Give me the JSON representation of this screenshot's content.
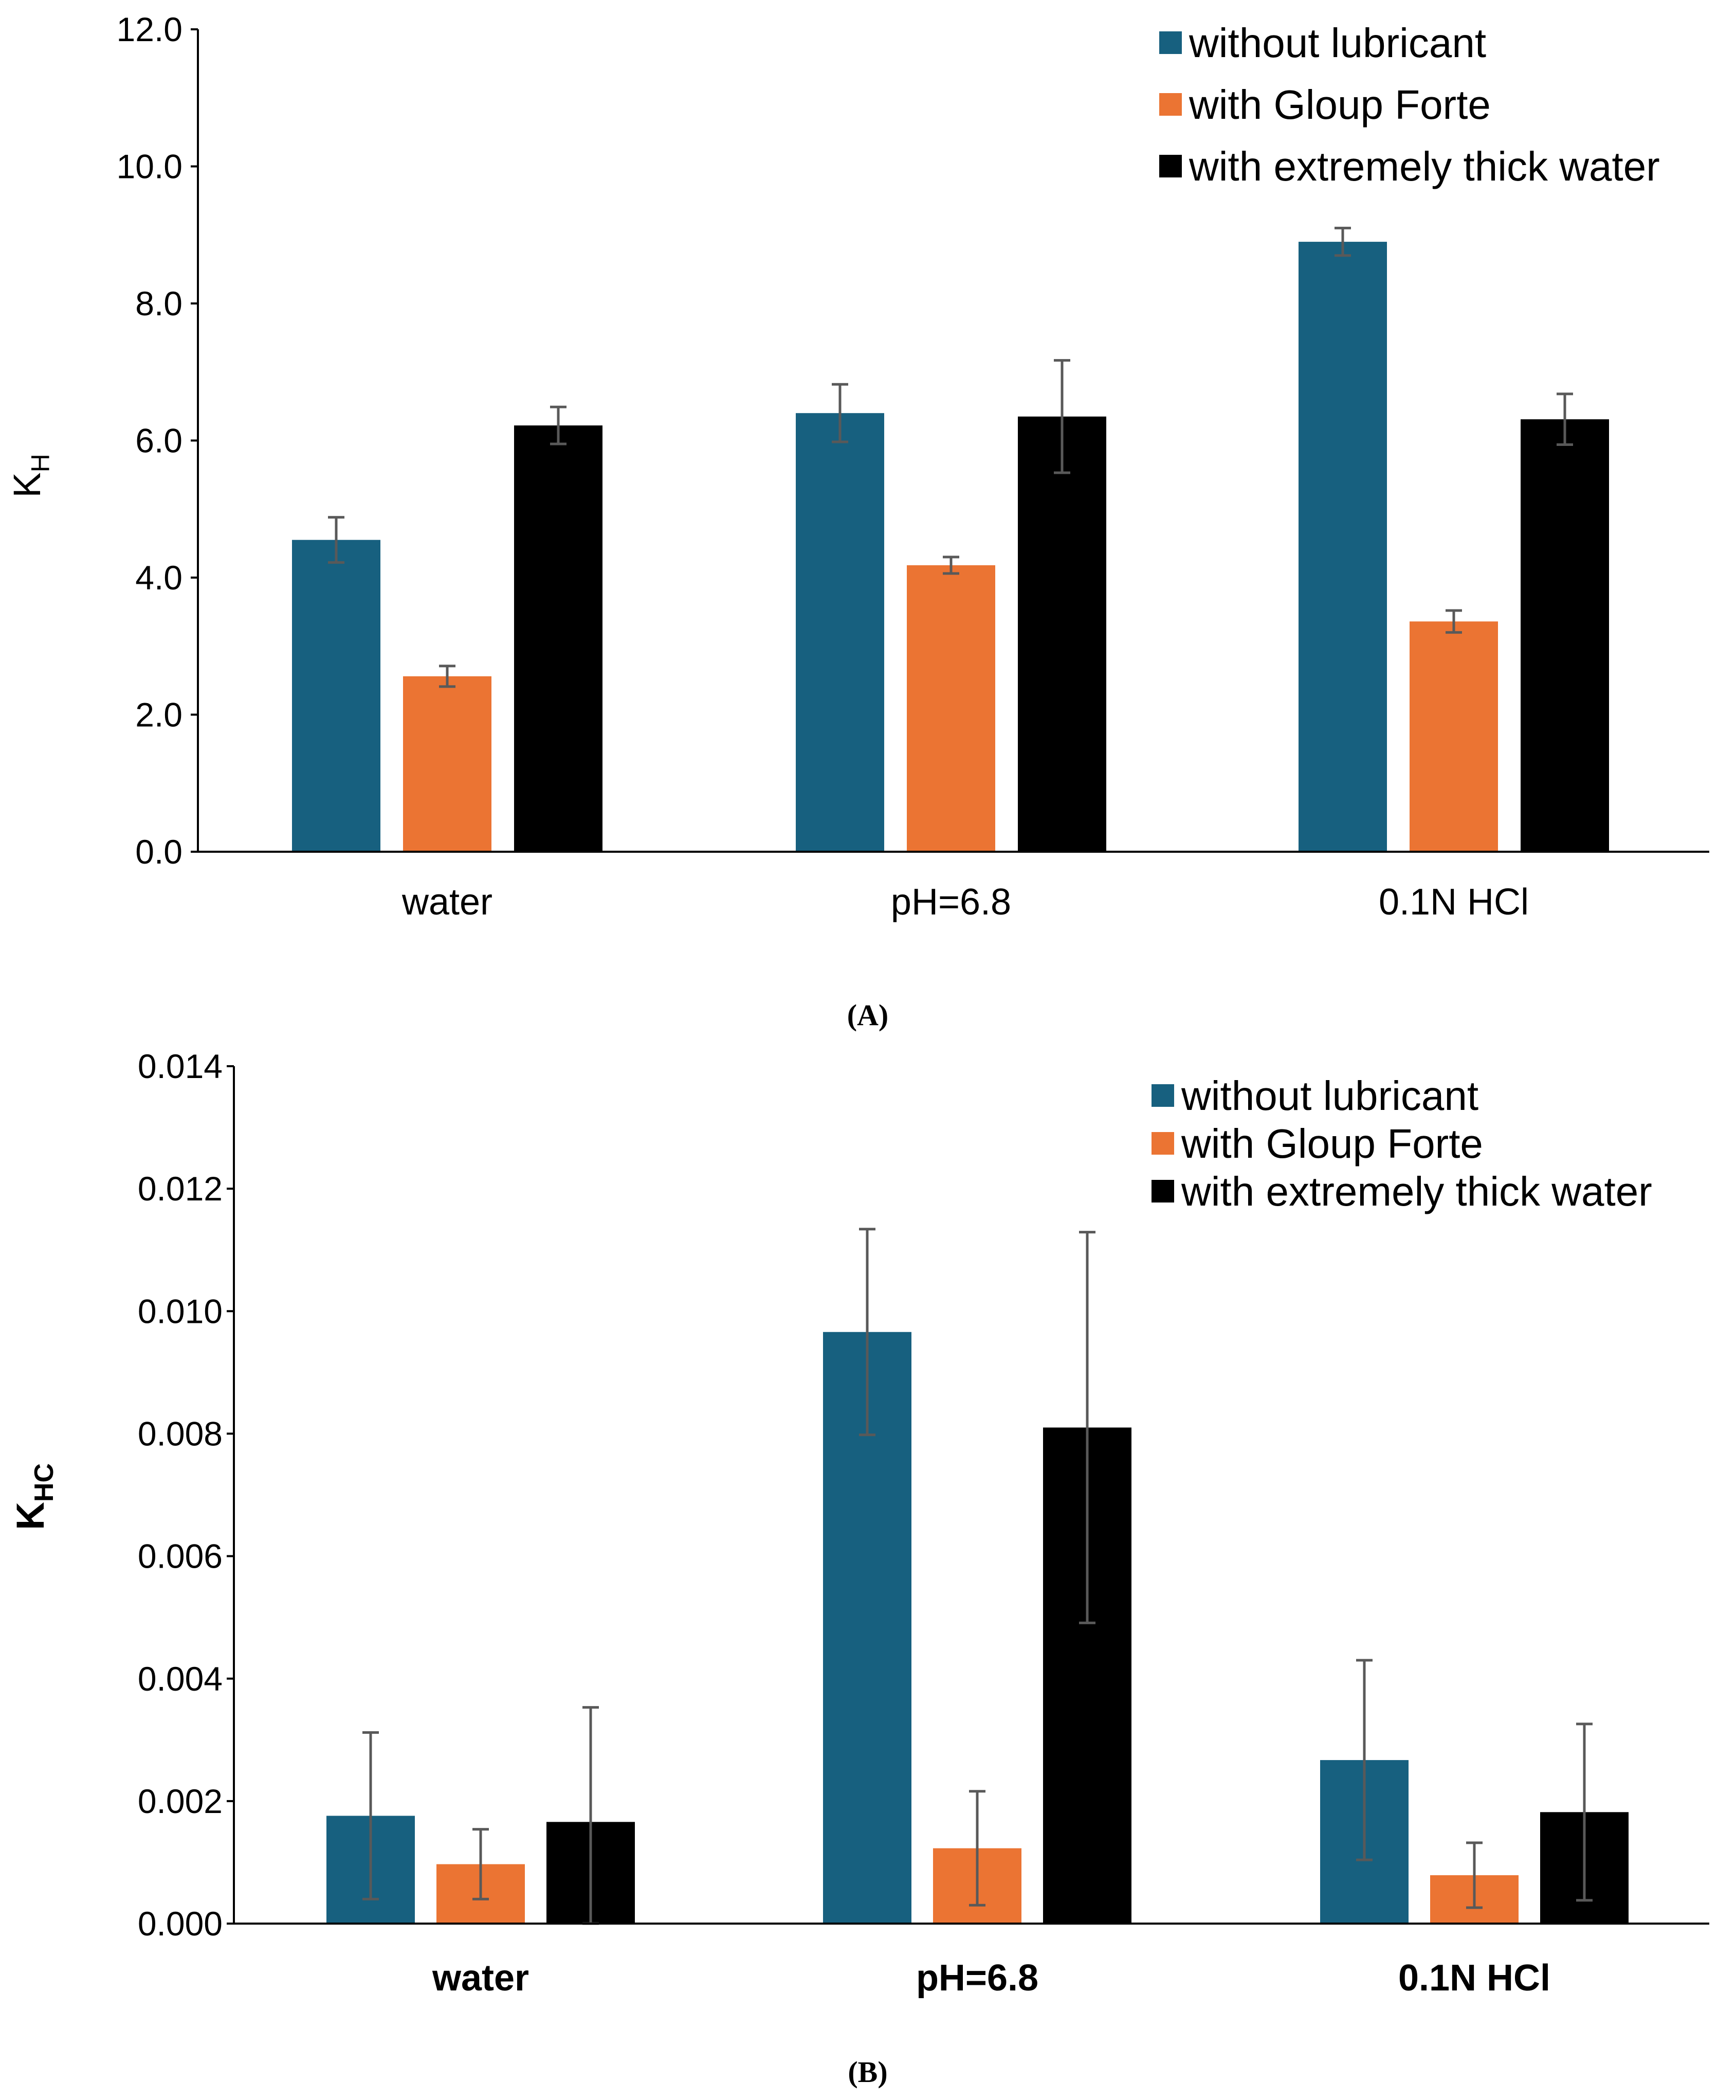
{
  "colors": {
    "without_lubricant": "#17607f",
    "with_gloup_forte": "#eb7433",
    "with_extremely_thick_water": "#000000",
    "error_bar": "#595959",
    "axis": "#000000",
    "text": "#000000"
  },
  "chart_data": [
    {
      "id": "A",
      "type": "bar",
      "caption": "(A)",
      "title": "",
      "xlabel": "",
      "ylabel": {
        "main": "K",
        "sub": "H"
      },
      "ylim": [
        0,
        12
      ],
      "ytick_values": [
        0,
        2,
        4,
        6,
        8,
        10,
        12
      ],
      "ytick_labels": [
        "0.0",
        "2.0",
        "4.0",
        "6.0",
        "8.0",
        "10.0",
        "12.0"
      ],
      "categories": [
        "water",
        "pH=6.8",
        "0.1N HCl"
      ],
      "category_bold": false,
      "grid": false,
      "legend_position": "top-right",
      "series": [
        {
          "name": "without lubricant",
          "color_key": "without_lubricant",
          "values": [
            4.55,
            6.4,
            8.9
          ],
          "errors": [
            0.33,
            0.42,
            0.2
          ]
        },
        {
          "name": "with Gloup Forte",
          "color_key": "with_gloup_forte",
          "values": [
            2.56,
            4.18,
            3.36
          ],
          "errors": [
            0.15,
            0.12,
            0.16
          ]
        },
        {
          "name": "with extremely thick water",
          "color_key": "with_extremely_thick_water",
          "values": [
            6.22,
            6.35,
            6.31
          ],
          "errors": [
            0.27,
            0.82,
            0.37
          ]
        }
      ]
    },
    {
      "id": "B",
      "type": "bar",
      "caption": "(B)",
      "title": "",
      "xlabel": "",
      "ylabel": {
        "main": "K",
        "sub": "HC"
      },
      "ylim": [
        0,
        0.014
      ],
      "ytick_values": [
        0,
        0.002,
        0.004,
        0.006,
        0.008,
        0.01,
        0.012,
        0.014
      ],
      "ytick_labels": [
        "0.000",
        "0.002",
        "0.004",
        "0.006",
        "0.008",
        "0.010",
        "0.012",
        "0.014"
      ],
      "categories": [
        "water",
        "pH=6.8",
        "0.1N HCl"
      ],
      "category_bold": true,
      "grid": false,
      "legend_position": "top-right",
      "series": [
        {
          "name": "without lubricant",
          "color_key": "without_lubricant",
          "values": [
            0.00176,
            0.00966,
            0.00267
          ],
          "errors": [
            0.00136,
            0.00168,
            0.00163
          ]
        },
        {
          "name": "with Gloup Forte",
          "color_key": "with_gloup_forte",
          "values": [
            0.00097,
            0.00123,
            0.00079
          ],
          "errors": [
            0.00057,
            0.00093,
            0.00053
          ]
        },
        {
          "name": "with extremely thick water",
          "color_key": "with_extremely_thick_water",
          "values": [
            0.00166,
            0.0081,
            0.00182
          ],
          "errors": [
            0.00187,
            0.00319,
            0.00144
          ]
        }
      ]
    }
  ]
}
